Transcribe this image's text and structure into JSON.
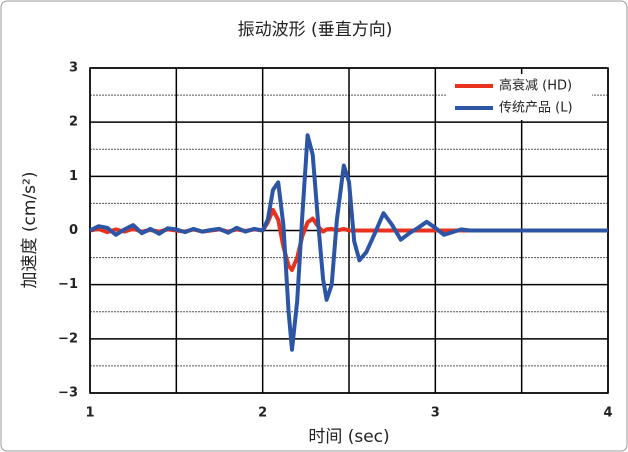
{
  "chart_data": {
    "type": "line",
    "title": "振动波形 (垂直方向)",
    "x_label": "时间 (sec)",
    "y_label": "加速度 (cm/s²)",
    "x": [
      1.0,
      1.05,
      1.1,
      1.15,
      1.2,
      1.25,
      1.3,
      1.35,
      1.4,
      1.45,
      1.5,
      1.55,
      1.6,
      1.65,
      1.7,
      1.75,
      1.8,
      1.85,
      1.9,
      1.95,
      2.0,
      2.03,
      2.06,
      2.09,
      2.12,
      2.15,
      2.17,
      2.2,
      2.23,
      2.26,
      2.29,
      2.32,
      2.35,
      2.37,
      2.4,
      2.43,
      2.47,
      2.5,
      2.53,
      2.56,
      2.6,
      2.65,
      2.7,
      2.75,
      2.8,
      2.85,
      2.9,
      2.95,
      3.0,
      3.05,
      3.1,
      3.15,
      3.2,
      3.3,
      3.5,
      4.0
    ],
    "series": [
      {
        "name": "高衰减 (HD)",
        "color": "#e8321e",
        "values": [
          0,
          0.03,
          -0.03,
          0.02,
          -0.02,
          0.03,
          -0.02,
          0.01,
          -0.02,
          0.02,
          0,
          -0.02,
          0.02,
          -0.02,
          0,
          0.02,
          -0.02,
          0.02,
          -0.01,
          0.02,
          0,
          0.15,
          0.38,
          0.2,
          -0.3,
          -0.65,
          -0.73,
          -0.5,
          -0.1,
          0.15,
          0.22,
          0.08,
          -0.02,
          0.02,
          0.03,
          0,
          0.03,
          0,
          0,
          0,
          0,
          0,
          0,
          0,
          0,
          0,
          0,
          0,
          0,
          0,
          0,
          0,
          0,
          0,
          0,
          0
        ]
      },
      {
        "name": "传统产品 (L)",
        "color": "#2c55a5",
        "values": [
          0,
          0.08,
          0.05,
          -0.08,
          0.02,
          0.1,
          -0.05,
          0.03,
          -0.06,
          0.04,
          0.02,
          -0.03,
          0.03,
          -0.02,
          0.01,
          0.03,
          -0.04,
          0.05,
          -0.02,
          0.03,
          0,
          0.2,
          0.75,
          0.89,
          0.1,
          -1.5,
          -2.2,
          -1.3,
          0.3,
          1.76,
          1.4,
          0.2,
          -0.9,
          -1.28,
          -1.0,
          0.2,
          1.2,
          0.9,
          -0.2,
          -0.55,
          -0.4,
          -0.05,
          0.32,
          0.1,
          -0.17,
          -0.05,
          0.05,
          0.16,
          0.05,
          -0.08,
          -0.03,
          0.02,
          0,
          0,
          0,
          0
        ]
      }
    ],
    "xlim": [
      1,
      4
    ],
    "xticks": [
      1,
      2,
      3,
      4
    ],
    "x_grid": [
      1.5,
      2.5,
      3.5
    ],
    "ylim": [
      -3,
      3
    ],
    "yticks": [
      {
        "value": -3,
        "label": "−3"
      },
      {
        "value": -2,
        "label": "−2"
      },
      {
        "value": -1,
        "label": "−1"
      },
      0,
      1,
      2,
      3
    ],
    "y_minor_grid": [
      -2.5,
      -1.5,
      -0.5,
      0.5,
      1.5,
      2.5
    ],
    "grid": true,
    "legend": "upper right"
  }
}
